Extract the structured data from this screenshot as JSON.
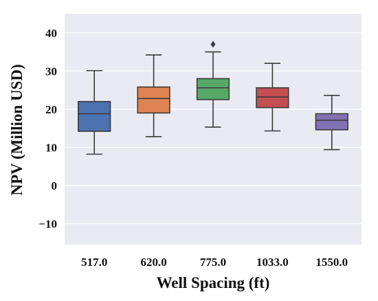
{
  "chart_data": {
    "type": "box",
    "xlabel": "Well Spacing (ft)",
    "ylabel": "NPV (Million USD)",
    "ylim": [
      -15.5,
      45
    ],
    "yticks": [
      -10,
      0,
      10,
      20,
      30,
      40
    ],
    "ytick_labels": [
      "−10",
      "0",
      "10",
      "20",
      "30",
      "40"
    ],
    "grid": true,
    "background": "#EAEAF2",
    "categories": [
      "517.0",
      "620.0",
      "775.0",
      "1033.0",
      "1550.0"
    ],
    "boxes": [
      {
        "category": "517.0",
        "whisker_low": 8.2,
        "q1": 14.2,
        "median": 18.8,
        "q3": 22.0,
        "whisker_high": 30.1,
        "outliers": [],
        "color": "#4C72B0"
      },
      {
        "category": "620.0",
        "whisker_low": 12.8,
        "q1": 19.0,
        "median": 22.8,
        "q3": 25.8,
        "whisker_high": 34.2,
        "outliers": [],
        "color": "#DD8452"
      },
      {
        "category": "775.0",
        "whisker_low": 15.3,
        "q1": 22.5,
        "median": 25.6,
        "q3": 28.0,
        "whisker_high": 35.0,
        "outliers": [
          37.0
        ],
        "color": "#55A868"
      },
      {
        "category": "1033.0",
        "whisker_low": 14.3,
        "q1": 20.4,
        "median": 23.2,
        "q3": 25.6,
        "whisker_high": 32.0,
        "outliers": [],
        "color": "#C44E52"
      },
      {
        "category": "1550.0",
        "whisker_low": 9.4,
        "q1": 14.6,
        "median": 17.1,
        "q3": 18.8,
        "whisker_high": 23.6,
        "outliers": [],
        "color": "#8172B3"
      }
    ]
  }
}
